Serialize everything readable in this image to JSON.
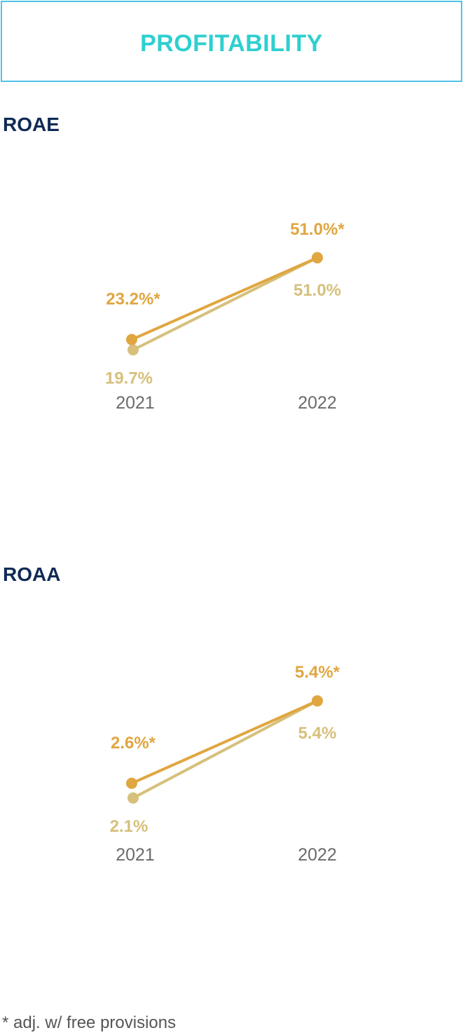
{
  "header": {
    "title": "PROFITABILITY"
  },
  "footnote": "* adj. w/ free provisions",
  "colors": {
    "adjusted": "#e0a640",
    "reported": "#d6c07c",
    "year_label": "#6b6b6b",
    "title": "#0f2a55",
    "header": "#2ecfcf",
    "border": "#4fc3e8"
  },
  "chart_data": [
    {
      "type": "line",
      "title": "ROAE",
      "categories": [
        "2021",
        "2022"
      ],
      "ylim": [
        10,
        60
      ],
      "series": [
        {
          "key": "adjusted",
          "values": [
            23.2,
            51.0
          ],
          "labels": [
            "23.2%*",
            "51.0%*"
          ]
        },
        {
          "key": "reported",
          "values": [
            19.7,
            51.0
          ],
          "labels": [
            "19.7%",
            "51.0%"
          ]
        }
      ]
    },
    {
      "type": "line",
      "title": "ROAA",
      "categories": [
        "2021",
        "2022"
      ],
      "ylim": [
        1,
        6
      ],
      "series": [
        {
          "key": "adjusted",
          "values": [
            2.6,
            5.4
          ],
          "labels": [
            "2.6%*",
            "5.4%*"
          ]
        },
        {
          "key": "reported",
          "values": [
            2.1,
            5.4
          ],
          "labels": [
            "2.1%",
            "5.4%"
          ]
        }
      ]
    }
  ]
}
